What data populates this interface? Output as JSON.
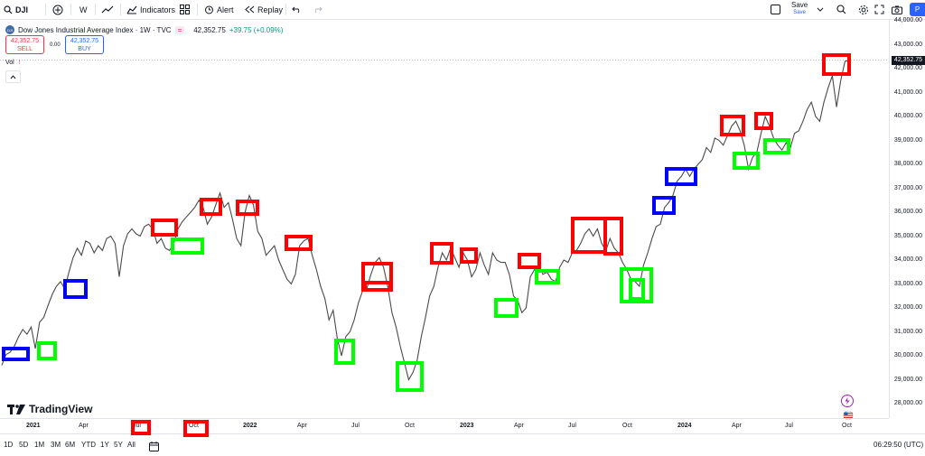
{
  "toolbar": {
    "symbol": "DJI",
    "interval": "W",
    "indicators_label": "Indicators",
    "alert_label": "Alert",
    "replay_label": "Replay",
    "save_label": "Save",
    "save_sub": "Save",
    "publish_label": "P"
  },
  "legend": {
    "title": "Dow Jones Industrial Average Index · 1W · TVC",
    "price": "42,352.75",
    "change": "+39.75 (+0.09%)",
    "sell_price": "42,352.75",
    "sell_label": "SELL",
    "buy_price": "42,352.75",
    "buy_label": "BUY",
    "spread": "0.00",
    "vol_label": "Vol"
  },
  "price_axis": {
    "labels": [
      "44,000.00",
      "43,000.00",
      "42,000.00",
      "41,000.00",
      "40,000.00",
      "39,000.00",
      "38,000.00",
      "37,000.00",
      "36,000.00",
      "35,000.00",
      "34,000.00",
      "33,000.00",
      "32,000.00",
      "31,000.00",
      "30,000.00",
      "29,000.00",
      "28,000.00"
    ],
    "last_price": "42,352.75"
  },
  "time_axis": {
    "labels": [
      {
        "text": "2021",
        "bold": true
      },
      {
        "text": "Apr",
        "bold": false
      },
      {
        "text": "Jul",
        "bold": false
      },
      {
        "text": "Oct",
        "bold": false
      },
      {
        "text": "2022",
        "bold": true
      },
      {
        "text": "Apr",
        "bold": false
      },
      {
        "text": "Jul",
        "bold": false
      },
      {
        "text": "Oct",
        "bold": false
      },
      {
        "text": "2023",
        "bold": true
      },
      {
        "text": "Apr",
        "bold": false
      },
      {
        "text": "Jul",
        "bold": false
      },
      {
        "text": "Oct",
        "bold": false
      },
      {
        "text": "2024",
        "bold": true
      },
      {
        "text": "Apr",
        "bold": false
      },
      {
        "text": "Jul",
        "bold": false
      },
      {
        "text": "Oct",
        "bold": false
      }
    ]
  },
  "bottom": {
    "ranges": [
      "1D",
      "5D",
      "1M",
      "3M",
      "6M",
      "YTD",
      "1Y",
      "5Y",
      "All"
    ],
    "clock": "06:29:50 (UTC)"
  },
  "branding": {
    "logo_text": "TradingView"
  },
  "colors": {
    "line": "#4a4a4a",
    "red": "#ff0000",
    "green": "#00ff00",
    "blue": "#0000ff"
  },
  "chart_data": {
    "type": "line",
    "ylim": [
      28000,
      44000
    ],
    "last": 42352.75,
    "series": [
      {
        "values": [
          29600,
          30050,
          30150,
          30400,
          30800,
          31100,
          30900,
          31200,
          30300,
          31400,
          31600,
          32100,
          32550,
          32900,
          33100,
          32800,
          33500,
          34100,
          34500,
          34200,
          34800,
          34700,
          34300,
          34600,
          34400,
          34900,
          35000,
          34700,
          33300,
          34600,
          35100,
          35300,
          35100,
          35000,
          35400,
          35500,
          35300,
          34700,
          34900,
          34500,
          34400,
          34700,
          35300,
          35600,
          35800,
          36000,
          36200,
          36500,
          36200,
          35500,
          35800,
          36300,
          36800,
          36200,
          36400,
          35700,
          34900,
          34600,
          36000,
          36700,
          36300,
          35200,
          34900,
          34200,
          34400,
          34600,
          34000,
          33600,
          33200,
          33000,
          33400,
          34600,
          34800,
          34900,
          34200,
          33600,
          32900,
          32400,
          31500,
          31900,
          30700,
          30000,
          30800,
          31000,
          31500,
          32200,
          32700,
          32800,
          33400,
          33900,
          34100,
          33700,
          32900,
          31800,
          31200,
          30400,
          29700,
          29000,
          29300,
          29800,
          30800,
          31600,
          32500,
          32900,
          33700,
          34300,
          34000,
          34500,
          34100,
          33700,
          34300,
          34000,
          33300,
          33600,
          34300,
          33800,
          33400,
          34300,
          34000,
          33900,
          33900,
          33400,
          32500,
          32300,
          31800,
          32000,
          33300,
          33600,
          33800,
          33400,
          33500,
          33200,
          33100,
          33700,
          34000,
          33900,
          34300,
          34400,
          34700,
          35100,
          35300,
          35000,
          35300,
          34700,
          34400,
          34900,
          34500,
          34300,
          33900,
          33600,
          33200,
          33100,
          32900,
          33800,
          34300,
          34900,
          35400,
          35500,
          36200,
          36400,
          36700,
          37300,
          37500,
          37800,
          37500,
          37800,
          38000,
          38200,
          38700,
          38500,
          39100,
          39000,
          38800,
          39200,
          39600,
          39800,
          39400,
          38800,
          37800,
          38300,
          38500,
          39300,
          40000,
          39600,
          39100,
          38800,
          38600,
          38900,
          38700,
          39300,
          39400,
          39800,
          40300,
          40600,
          40000,
          39800,
          40600,
          41200,
          41700,
          40400,
          41500,
          42300,
          42350
        ]
      }
    ]
  }
}
